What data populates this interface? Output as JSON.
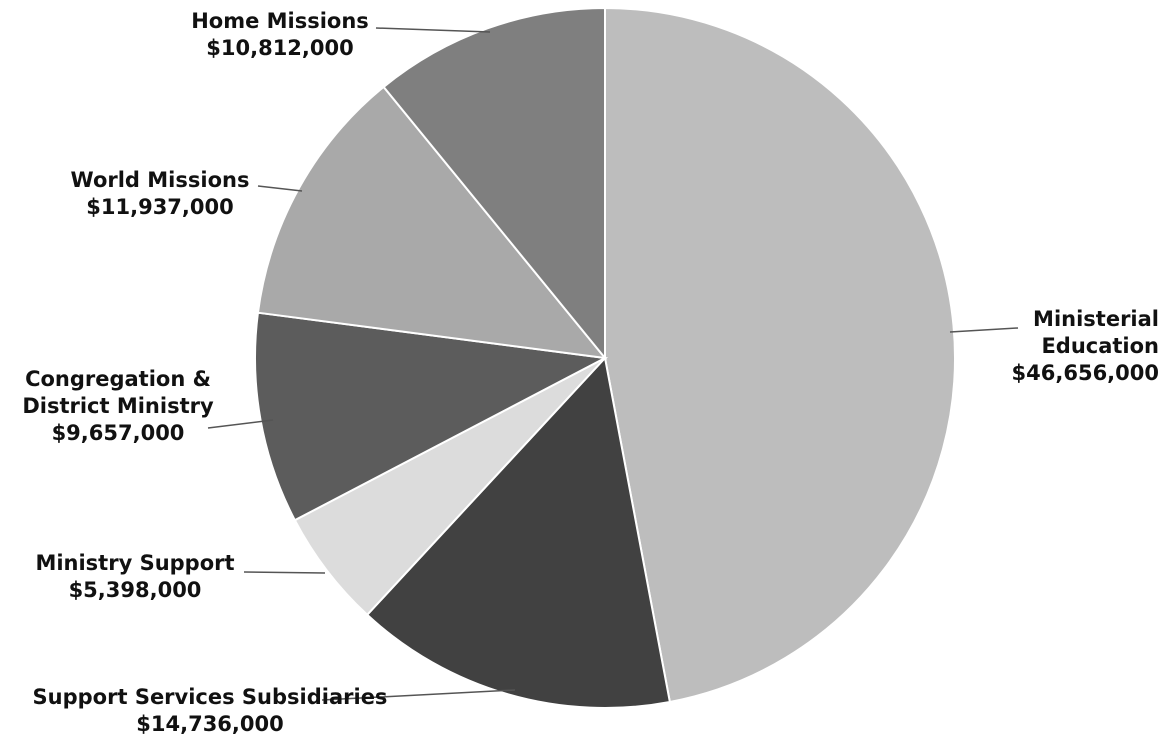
{
  "chart_data": {
    "type": "pie",
    "title": "",
    "slices": [
      {
        "label": "Ministerial Education",
        "label_lines": [
          "Ministerial",
          "Education"
        ],
        "value": 46656000,
        "value_text": "$46,656,000",
        "color": "#bdbdbd"
      },
      {
        "label": "Support Services Subsidiaries",
        "label_lines": [
          "Support Services Subsidiaries"
        ],
        "value": 14736000,
        "value_text": "$14,736,000",
        "color": "#414141"
      },
      {
        "label": "Ministry Support",
        "label_lines": [
          "Ministry Support"
        ],
        "value": 5398000,
        "value_text": "$5,398,000",
        "color": "#dcdcdc"
      },
      {
        "label": "Congregation & District Ministry",
        "label_lines": [
          "Congregation &",
          "District Ministry"
        ],
        "value": 9657000,
        "value_text": "$9,657,000",
        "color": "#5c5c5c"
      },
      {
        "label": "World Missions",
        "label_lines": [
          "World Missions"
        ],
        "value": 11937000,
        "value_text": "$11,937,000",
        "color": "#a9a9a9"
      },
      {
        "label": "Home Missions",
        "label_lines": [
          "Home Missions"
        ],
        "value": 10812000,
        "value_text": "$10,812,000",
        "color": "#7f7f7f"
      }
    ],
    "legend": "none",
    "start": "12 o'clock",
    "direction": "clockwise"
  }
}
